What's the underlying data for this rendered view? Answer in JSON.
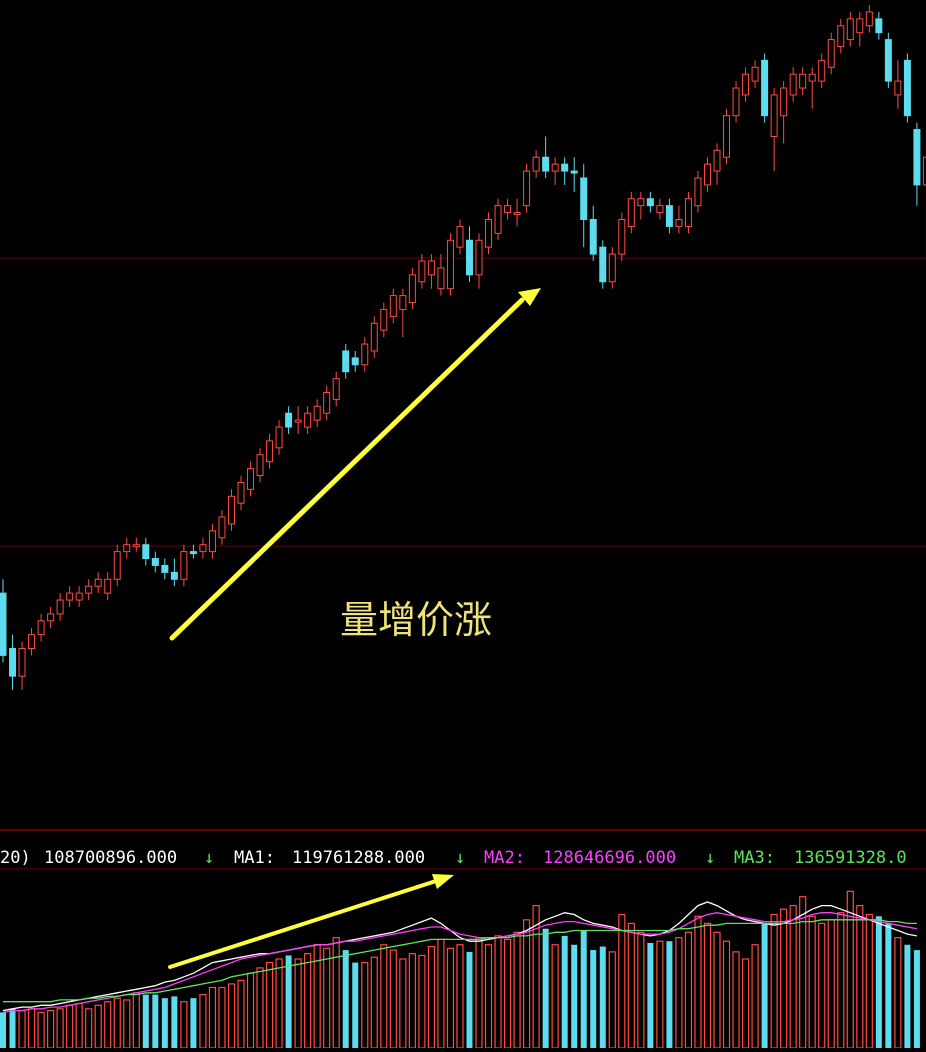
{
  "annotation": {
    "text": "量增价涨",
    "color": "#f0e27a"
  },
  "colors": {
    "up": "#ff4a40",
    "down": "#5cdcee",
    "arrow": "#ffff3c",
    "grid": "#6a0000",
    "ma1": "#ffffff",
    "ma2": "#ff3cff",
    "ma3": "#5ee35e",
    "text": "#ffffff"
  },
  "volume_header": {
    "prefix": "20)",
    "vol_value": "108700896.000",
    "vol_arrow": "↓",
    "ma1_label": "MA1:",
    "ma1_value": "119761288.000",
    "ma1_arrow": "↓",
    "ma2_label": "MA2:",
    "ma2_value": "128646696.000",
    "ma2_arrow": "↓",
    "ma3_label": "MA3:",
    "ma3_value": "136591328.0"
  },
  "chart_data": [
    {
      "type": "candlestick",
      "title": "",
      "direction_encoding": "up=red hollow, down=cyan filled",
      "ylim": [
        0,
        100
      ],
      "candles": [
        {
          "o": 14,
          "h": 25,
          "l": 13,
          "c": 23,
          "dir": "down"
        },
        {
          "o": 15,
          "h": 17,
          "l": 9,
          "c": 11,
          "dir": "down"
        },
        {
          "o": 11,
          "h": 16,
          "l": 9,
          "c": 15,
          "dir": "up"
        },
        {
          "o": 15,
          "h": 18,
          "l": 14,
          "c": 17,
          "dir": "up"
        },
        {
          "o": 17,
          "h": 20,
          "l": 16,
          "c": 19,
          "dir": "up"
        },
        {
          "o": 19,
          "h": 21,
          "l": 18,
          "c": 20,
          "dir": "up"
        },
        {
          "o": 20,
          "h": 23,
          "l": 19,
          "c": 22,
          "dir": "up"
        },
        {
          "o": 22,
          "h": 24,
          "l": 21,
          "c": 23,
          "dir": "up"
        },
        {
          "o": 22,
          "h": 24,
          "l": 21,
          "c": 23,
          "dir": "up"
        },
        {
          "o": 23,
          "h": 25,
          "l": 22,
          "c": 24,
          "dir": "up"
        },
        {
          "o": 24,
          "h": 26,
          "l": 23,
          "c": 25,
          "dir": "up"
        },
        {
          "o": 23,
          "h": 26,
          "l": 22,
          "c": 25,
          "dir": "up"
        },
        {
          "o": 25,
          "h": 30,
          "l": 24,
          "c": 29,
          "dir": "up"
        },
        {
          "o": 29,
          "h": 31,
          "l": 28,
          "c": 30,
          "dir": "up"
        },
        {
          "o": 30,
          "h": 31,
          "l": 29,
          "c": 30,
          "dir": "up"
        },
        {
          "o": 30,
          "h": 31,
          "l": 27,
          "c": 28,
          "dir": "down"
        },
        {
          "o": 28,
          "h": 29,
          "l": 26,
          "c": 27,
          "dir": "down"
        },
        {
          "o": 27,
          "h": 28,
          "l": 25,
          "c": 26,
          "dir": "down"
        },
        {
          "o": 26,
          "h": 28,
          "l": 24,
          "c": 25,
          "dir": "down"
        },
        {
          "o": 25,
          "h": 30,
          "l": 24,
          "c": 29,
          "dir": "up"
        },
        {
          "o": 29,
          "h": 30,
          "l": 28,
          "c": 29,
          "dir": "down"
        },
        {
          "o": 29,
          "h": 31,
          "l": 28,
          "c": 30,
          "dir": "up"
        },
        {
          "o": 29,
          "h": 33,
          "l": 28,
          "c": 32,
          "dir": "up"
        },
        {
          "o": 31,
          "h": 35,
          "l": 30,
          "c": 34,
          "dir": "up"
        },
        {
          "o": 33,
          "h": 38,
          "l": 32,
          "c": 37,
          "dir": "up"
        },
        {
          "o": 36,
          "h": 40,
          "l": 35,
          "c": 39,
          "dir": "up"
        },
        {
          "o": 38,
          "h": 42,
          "l": 37,
          "c": 41,
          "dir": "up"
        },
        {
          "o": 40,
          "h": 44,
          "l": 39,
          "c": 43,
          "dir": "up"
        },
        {
          "o": 42,
          "h": 46,
          "l": 41,
          "c": 45,
          "dir": "up"
        },
        {
          "o": 44,
          "h": 48,
          "l": 43,
          "c": 47,
          "dir": "up"
        },
        {
          "o": 47,
          "h": 50,
          "l": 46,
          "c": 49,
          "dir": "down"
        },
        {
          "o": 48,
          "h": 50,
          "l": 46,
          "c": 48,
          "dir": "up"
        },
        {
          "o": 47,
          "h": 50,
          "l": 46,
          "c": 49,
          "dir": "up"
        },
        {
          "o": 48,
          "h": 51,
          "l": 47,
          "c": 50,
          "dir": "up"
        },
        {
          "o": 49,
          "h": 53,
          "l": 48,
          "c": 52,
          "dir": "up"
        },
        {
          "o": 51,
          "h": 55,
          "l": 50,
          "c": 54,
          "dir": "up"
        },
        {
          "o": 55,
          "h": 59,
          "l": 54,
          "c": 58,
          "dir": "down"
        },
        {
          "o": 56,
          "h": 58,
          "l": 55,
          "c": 57,
          "dir": "down"
        },
        {
          "o": 56,
          "h": 60,
          "l": 55,
          "c": 59,
          "dir": "up"
        },
        {
          "o": 58,
          "h": 63,
          "l": 57,
          "c": 62,
          "dir": "up"
        },
        {
          "o": 61,
          "h": 65,
          "l": 60,
          "c": 64,
          "dir": "up"
        },
        {
          "o": 63,
          "h": 67,
          "l": 62,
          "c": 66,
          "dir": "up"
        },
        {
          "o": 64,
          "h": 67,
          "l": 60,
          "c": 66,
          "dir": "up"
        },
        {
          "o": 65,
          "h": 70,
          "l": 64,
          "c": 69,
          "dir": "up"
        },
        {
          "o": 68,
          "h": 72,
          "l": 67,
          "c": 71,
          "dir": "up"
        },
        {
          "o": 69,
          "h": 72,
          "l": 67,
          "c": 71,
          "dir": "up"
        },
        {
          "o": 70,
          "h": 72,
          "l": 66,
          "c": 67,
          "dir": "up"
        },
        {
          "o": 67,
          "h": 75,
          "l": 66,
          "c": 74,
          "dir": "up"
        },
        {
          "o": 73,
          "h": 77,
          "l": 72,
          "c": 76,
          "dir": "up"
        },
        {
          "o": 74,
          "h": 76,
          "l": 68,
          "c": 69,
          "dir": "down"
        },
        {
          "o": 69,
          "h": 75,
          "l": 67,
          "c": 74,
          "dir": "up"
        },
        {
          "o": 73,
          "h": 78,
          "l": 72,
          "c": 77,
          "dir": "up"
        },
        {
          "o": 75,
          "h": 80,
          "l": 74,
          "c": 79,
          "dir": "up"
        },
        {
          "o": 78,
          "h": 80,
          "l": 77,
          "c": 79,
          "dir": "up"
        },
        {
          "o": 78,
          "h": 80,
          "l": 76,
          "c": 78,
          "dir": "up"
        },
        {
          "o": 79,
          "h": 85,
          "l": 78,
          "c": 84,
          "dir": "up"
        },
        {
          "o": 84,
          "h": 87,
          "l": 83,
          "c": 86,
          "dir": "up"
        },
        {
          "o": 86,
          "h": 89,
          "l": 83,
          "c": 84,
          "dir": "down"
        },
        {
          "o": 84,
          "h": 86,
          "l": 82,
          "c": 85,
          "dir": "up"
        },
        {
          "o": 84,
          "h": 86,
          "l": 82,
          "c": 85,
          "dir": "down"
        },
        {
          "o": 84,
          "h": 86,
          "l": 81,
          "c": 84,
          "dir": "down"
        },
        {
          "o": 83,
          "h": 85,
          "l": 73,
          "c": 77,
          "dir": "down"
        },
        {
          "o": 77,
          "h": 79,
          "l": 71,
          "c": 72,
          "dir": "down"
        },
        {
          "o": 73,
          "h": 74,
          "l": 67,
          "c": 68,
          "dir": "down"
        },
        {
          "o": 68,
          "h": 73,
          "l": 67,
          "c": 72,
          "dir": "up"
        },
        {
          "o": 72,
          "h": 78,
          "l": 71,
          "c": 77,
          "dir": "up"
        },
        {
          "o": 76,
          "h": 81,
          "l": 75,
          "c": 80,
          "dir": "up"
        },
        {
          "o": 79,
          "h": 81,
          "l": 77,
          "c": 80,
          "dir": "up"
        },
        {
          "o": 80,
          "h": 81,
          "l": 78,
          "c": 79,
          "dir": "down"
        },
        {
          "o": 78,
          "h": 80,
          "l": 77,
          "c": 79,
          "dir": "up"
        },
        {
          "o": 79,
          "h": 80,
          "l": 75,
          "c": 76,
          "dir": "down"
        },
        {
          "o": 76,
          "h": 79,
          "l": 75,
          "c": 77,
          "dir": "up"
        },
        {
          "o": 76,
          "h": 81,
          "l": 75,
          "c": 80,
          "dir": "up"
        },
        {
          "o": 79,
          "h": 84,
          "l": 78,
          "c": 83,
          "dir": "up"
        },
        {
          "o": 82,
          "h": 86,
          "l": 81,
          "c": 85,
          "dir": "up"
        },
        {
          "o": 84,
          "h": 88,
          "l": 82,
          "c": 87,
          "dir": "up"
        },
        {
          "o": 86,
          "h": 93,
          "l": 85,
          "c": 92,
          "dir": "up"
        },
        {
          "o": 92,
          "h": 97,
          "l": 91,
          "c": 96,
          "dir": "up"
        },
        {
          "o": 95,
          "h": 99,
          "l": 94,
          "c": 98,
          "dir": "up"
        },
        {
          "o": 97,
          "h": 100,
          "l": 96,
          "c": 99,
          "dir": "up"
        },
        {
          "o": 100,
          "h": 101,
          "l": 91,
          "c": 92,
          "dir": "down"
        },
        {
          "o": 89,
          "h": 96,
          "l": 84,
          "c": 95,
          "dir": "up"
        },
        {
          "o": 92,
          "h": 97,
          "l": 88,
          "c": 96,
          "dir": "up"
        },
        {
          "o": 95,
          "h": 99,
          "l": 94,
          "c": 98,
          "dir": "up"
        },
        {
          "o": 96,
          "h": 99,
          "l": 95,
          "c": 98,
          "dir": "up"
        },
        {
          "o": 97,
          "h": 99,
          "l": 93,
          "c": 98,
          "dir": "up"
        },
        {
          "o": 97,
          "h": 101,
          "l": 96,
          "c": 100,
          "dir": "up"
        },
        {
          "o": 99,
          "h": 104,
          "l": 98,
          "c": 103,
          "dir": "up"
        },
        {
          "o": 102,
          "h": 106,
          "l": 101,
          "c": 105,
          "dir": "up"
        },
        {
          "o": 103,
          "h": 107,
          "l": 102,
          "c": 106,
          "dir": "up"
        },
        {
          "o": 104,
          "h": 107,
          "l": 102,
          "c": 106,
          "dir": "up"
        },
        {
          "o": 105,
          "h": 108,
          "l": 104,
          "c": 107,
          "dir": "up"
        },
        {
          "o": 106,
          "h": 107,
          "l": 103,
          "c": 104,
          "dir": "down"
        },
        {
          "o": 103,
          "h": 104,
          "l": 96,
          "c": 97,
          "dir": "down"
        },
        {
          "o": 97,
          "h": 100,
          "l": 93,
          "c": 95,
          "dir": "up"
        },
        {
          "o": 100,
          "h": 101,
          "l": 91,
          "c": 92,
          "dir": "down"
        },
        {
          "o": 90,
          "h": 91,
          "l": 79,
          "c": 82,
          "dir": "down"
        },
        {
          "o": 82,
          "h": 87,
          "l": 71,
          "c": 86,
          "dir": "up"
        }
      ]
    },
    {
      "type": "bar",
      "title": "",
      "direction_encoding": "volume bars colored by candle direction",
      "ylim": [
        0,
        100
      ],
      "values": [
        20,
        22,
        21,
        22,
        20,
        21,
        22,
        24,
        25,
        22,
        24,
        26,
        28,
        27,
        31,
        30,
        30,
        28,
        29,
        26,
        28,
        30,
        34,
        34,
        36,
        38,
        42,
        45,
        48,
        50,
        52,
        50,
        53,
        58,
        56,
        62,
        55,
        48,
        48,
        51,
        58,
        55,
        50,
        53,
        52,
        57,
        61,
        56,
        58,
        54,
        62,
        58,
        63,
        61,
        65,
        72,
        80,
        67,
        58,
        63,
        58,
        66,
        55,
        57,
        54,
        75,
        70,
        65,
        59,
        60,
        60,
        62,
        65,
        74,
        70,
        65,
        60,
        54,
        50,
        58,
        70,
        75,
        78,
        80,
        85,
        74,
        70,
        72,
        76,
        88,
        80,
        75,
        74,
        70,
        62,
        58,
        55
      ],
      "series": [
        {
          "name": "MA1",
          "values": [
            21,
            22,
            23,
            23,
            24,
            24,
            25,
            26,
            27,
            28,
            29,
            30,
            31,
            32,
            33,
            34,
            35,
            37,
            38,
            40,
            42,
            45,
            48,
            49,
            50,
            51,
            52,
            53,
            53,
            54,
            55,
            56,
            57,
            58,
            58,
            59,
            60,
            61,
            62,
            63,
            64,
            65,
            67,
            69,
            71,
            73,
            70,
            66,
            62,
            60,
            60,
            61,
            62,
            63,
            64,
            66,
            69,
            72,
            74,
            76,
            75,
            72,
            70,
            69,
            68,
            66,
            65,
            64,
            63,
            64,
            66,
            70,
            75,
            80,
            82,
            80,
            77,
            74,
            72,
            71,
            70,
            69,
            70,
            72,
            75,
            78,
            80,
            80,
            78,
            76,
            74,
            72,
            70,
            68,
            66,
            64,
            63
          ]
        },
        {
          "name": "MA2",
          "values": [
            20,
            21,
            21,
            22,
            22,
            23,
            23,
            24,
            25,
            26,
            27,
            28,
            29,
            30,
            31,
            32,
            33,
            34,
            36,
            38,
            40,
            42,
            44,
            46,
            48,
            50,
            51,
            52,
            53,
            54,
            55,
            56,
            57,
            58,
            58,
            59,
            60,
            60,
            61,
            62,
            63,
            64,
            65,
            66,
            67,
            68,
            68,
            66,
            64,
            63,
            62,
            62,
            62,
            63,
            64,
            65,
            67,
            69,
            70,
            71,
            71,
            70,
            69,
            68,
            67,
            66,
            65,
            64,
            64,
            64,
            65,
            67,
            70,
            73,
            75,
            76,
            75,
            74,
            73,
            72,
            71,
            71,
            71,
            72,
            73,
            75,
            76,
            76,
            75,
            74,
            73,
            72,
            71,
            70,
            69,
            68,
            67
          ]
        },
        {
          "name": "MA3",
          "values": [
            26,
            26,
            26,
            26,
            26,
            26,
            27,
            27,
            27,
            28,
            28,
            29,
            29,
            30,
            30,
            31,
            31,
            32,
            33,
            34,
            35,
            36,
            37,
            38,
            40,
            41,
            42,
            43,
            44,
            45,
            46,
            47,
            48,
            49,
            50,
            51,
            52,
            53,
            54,
            55,
            56,
            57,
            58,
            59,
            60,
            61,
            61,
            61,
            61,
            61,
            61,
            62,
            62,
            62,
            63,
            63,
            64,
            64,
            65,
            65,
            66,
            66,
            66,
            66,
            66,
            66,
            66,
            66,
            66,
            66,
            66,
            67,
            67,
            68,
            69,
            69,
            70,
            70,
            70,
            70,
            70,
            70,
            70,
            70,
            71,
            71,
            72,
            72,
            72,
            72,
            72,
            72,
            72,
            71,
            71,
            70,
            70
          ]
        }
      ]
    }
  ]
}
